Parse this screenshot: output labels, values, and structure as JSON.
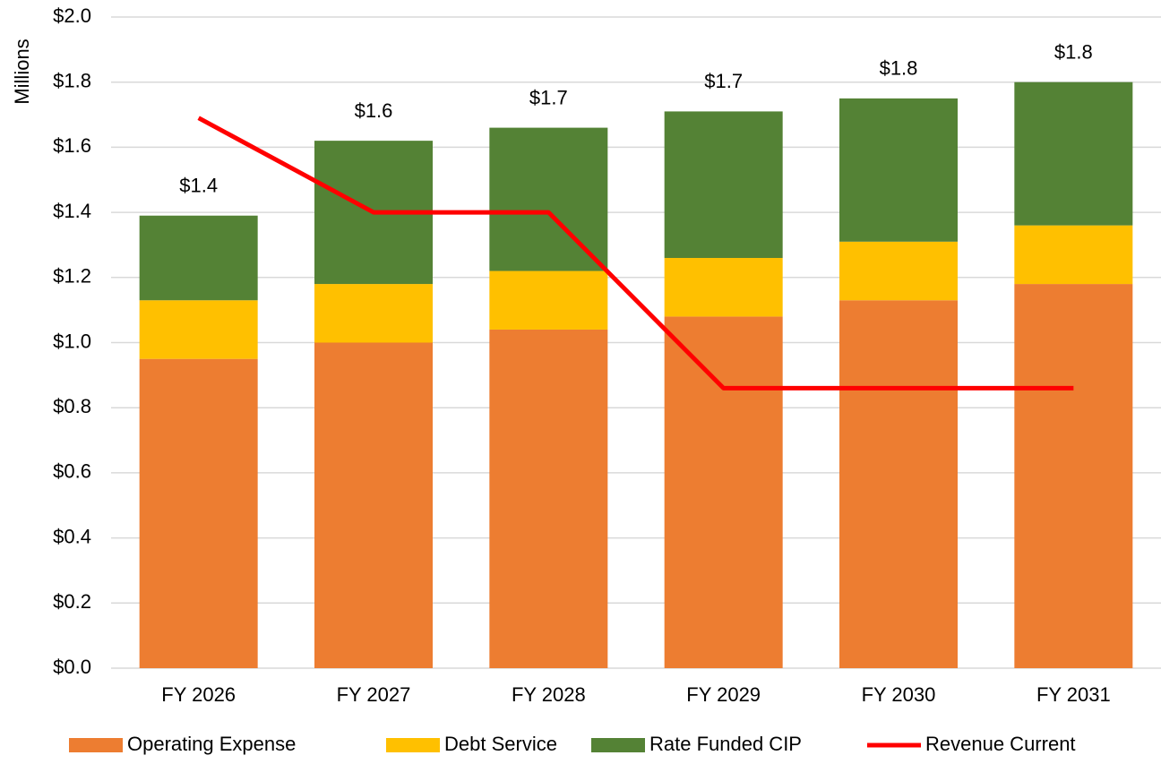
{
  "chart_data": {
    "type": "stacked_bar_line",
    "y_axis_label": "Millions",
    "categories": [
      "FY 2026",
      "FY 2027",
      "FY 2028",
      "FY 2029",
      "FY 2030",
      "FY 2031"
    ],
    "series": [
      {
        "name": "Operating Expense",
        "color": "#ed7d31",
        "kind": "bar",
        "values": [
          0.95,
          1.0,
          1.04,
          1.08,
          1.13,
          1.18
        ]
      },
      {
        "name": "Debt Service",
        "color": "#ffc000",
        "kind": "bar",
        "values": [
          0.18,
          0.18,
          0.18,
          0.18,
          0.18,
          0.18
        ]
      },
      {
        "name": "Rate Funded CIP",
        "color": "#548235",
        "kind": "bar",
        "values": [
          0.26,
          0.44,
          0.44,
          0.45,
          0.44,
          0.44
        ]
      },
      {
        "name": "Revenue Current",
        "color": "#ff0000",
        "kind": "line",
        "values": [
          1.69,
          1.4,
          1.4,
          0.86,
          0.86,
          0.86
        ]
      }
    ],
    "totals": {
      "values": [
        1.39,
        1.62,
        1.66,
        1.71,
        1.75,
        1.8
      ],
      "value_labels": [
        "$1.4",
        "$1.6",
        "$1.7",
        "$1.7",
        "$1.8",
        "$1.8"
      ]
    },
    "ylim": [
      0,
      2.0
    ],
    "yticks": [
      {
        "value": 0,
        "label": "$0.0"
      },
      {
        "value": 0.2,
        "label": "$0.2"
      },
      {
        "value": 0.4,
        "label": "$0.4"
      },
      {
        "value": 0.6,
        "label": "$0.6"
      },
      {
        "value": 0.8,
        "label": "$0.8"
      },
      {
        "value": 1.0,
        "label": "$1.0"
      },
      {
        "value": 1.2,
        "label": "$1.2"
      },
      {
        "value": 1.4,
        "label": "$1.4"
      },
      {
        "value": 1.6,
        "label": "$1.6"
      },
      {
        "value": 1.8,
        "label": "$1.8"
      },
      {
        "value": 2.0,
        "label": "$2.0"
      }
    ],
    "grid": true,
    "legend": "bottom"
  }
}
